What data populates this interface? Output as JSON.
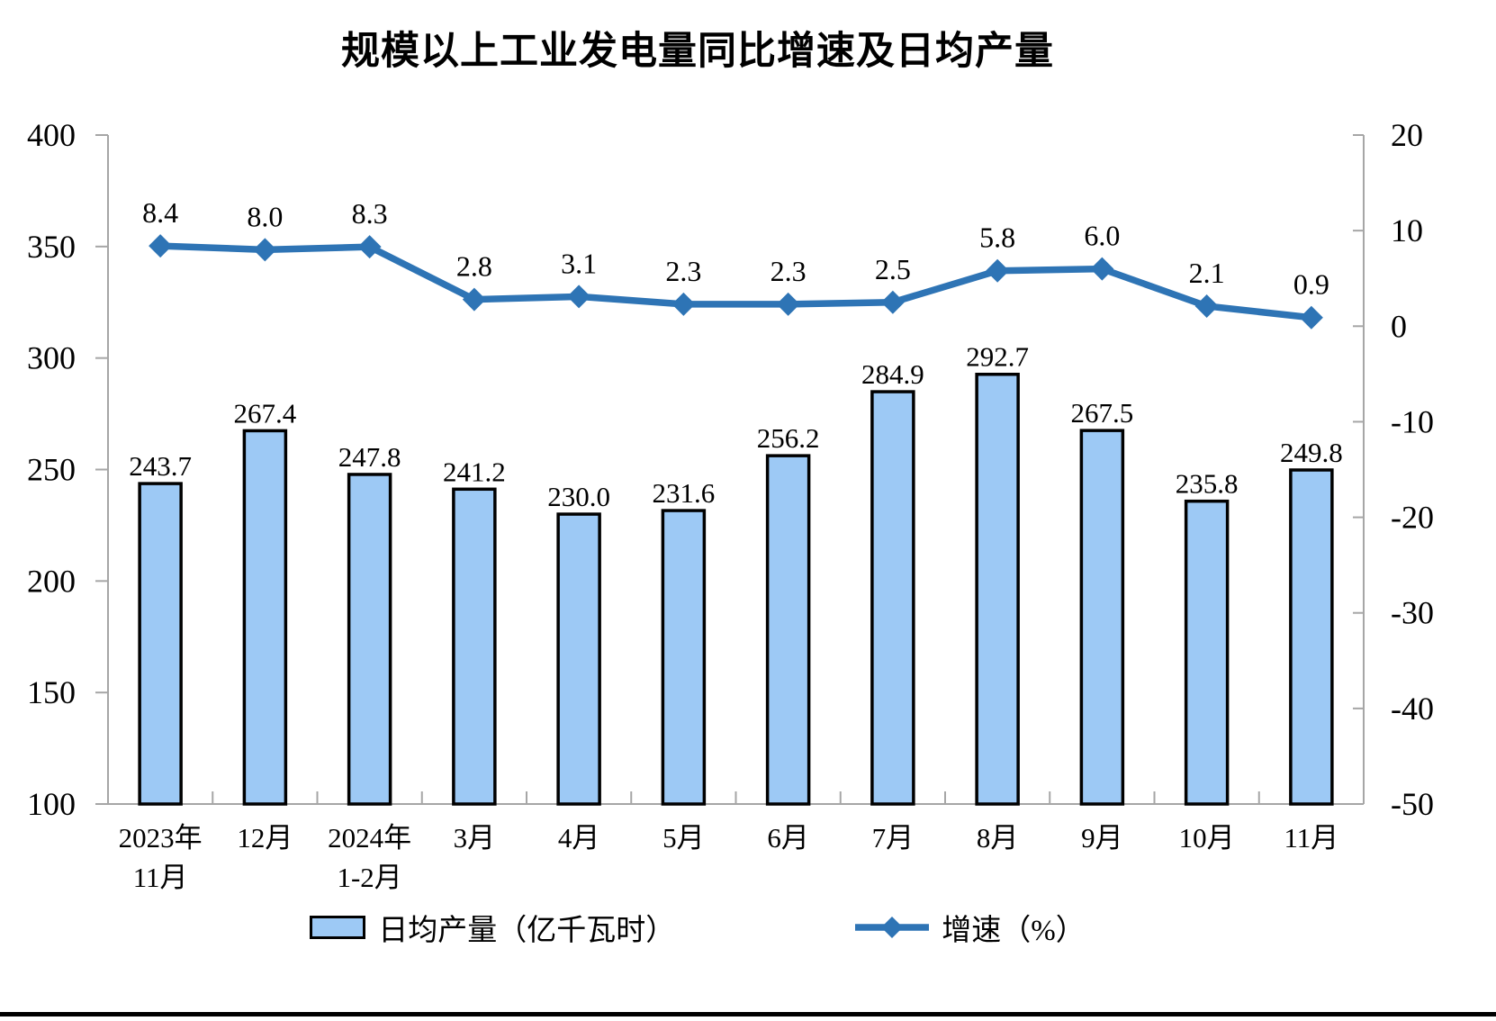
{
  "title": "规模以上工业发电量同比增速及日均产量",
  "colors": {
    "bar_fill": "#9DC9F5",
    "bar_border": "#000000",
    "line": "#2E74B5",
    "axis_line": "#A6A6A6",
    "text": "#000000",
    "page_bg": "#FFFFFF",
    "divider": "#000000"
  },
  "legend": {
    "bar_label": "日均产量（亿千瓦时）",
    "line_label": "增速（%）"
  },
  "chart_data": {
    "type": "bar+line",
    "title": "规模以上工业发电量同比增速及日均产量",
    "categories": [
      "2023年\n11月",
      "12月",
      "2024年\n1-2月",
      "3月",
      "4月",
      "5月",
      "6月",
      "7月",
      "8月",
      "9月",
      "10月",
      "11月"
    ],
    "series": [
      {
        "name": "日均产量（亿千瓦时）",
        "type": "bar",
        "axis": "left",
        "values": [
          243.7,
          267.4,
          247.8,
          241.2,
          230.0,
          231.6,
          256.2,
          284.9,
          292.7,
          267.5,
          235.8,
          249.8
        ],
        "labels": [
          "243.7",
          "267.4",
          "247.8",
          "241.2",
          "230.0",
          "231.6",
          "256.2",
          "284.9",
          "292.7",
          "267.5",
          "235.8",
          "249.8"
        ]
      },
      {
        "name": "增速（%）",
        "type": "line",
        "axis": "right",
        "values": [
          8.4,
          8.0,
          8.3,
          2.8,
          3.1,
          2.3,
          2.3,
          2.5,
          5.8,
          6.0,
          2.1,
          0.9
        ],
        "labels": [
          "8.4",
          "8.0",
          "8.3",
          "2.8",
          "3.1",
          "2.3",
          "2.3",
          "2.5",
          "5.8",
          "6.0",
          "2.1",
          "0.9"
        ]
      }
    ],
    "left_axis": {
      "min": 100,
      "max": 400,
      "ticks": [
        400,
        350,
        300,
        250,
        200,
        150,
        100
      ]
    },
    "right_axis": {
      "min": -50,
      "max": 20,
      "ticks": [
        20,
        10,
        0,
        -10,
        -20,
        -30,
        -40,
        -50
      ]
    },
    "grid": false,
    "legend_position": "bottom"
  }
}
